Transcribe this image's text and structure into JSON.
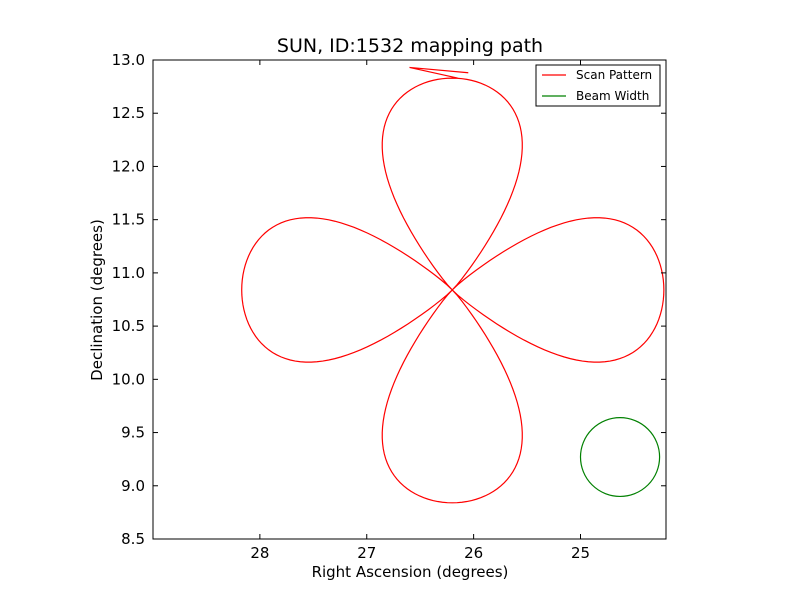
{
  "chart_data": {
    "type": "line",
    "title": "SUN, ID:1532 mapping path",
    "xlabel": "Right Ascension (degrees)",
    "ylabel": "Declination (degrees)",
    "xlim": [
      29.0,
      24.2
    ],
    "ylim": [
      8.5,
      13.0
    ],
    "x_inverted": true,
    "xticks": [
      28,
      27,
      26,
      25
    ],
    "yticks": [
      8.5,
      9.0,
      9.5,
      10.0,
      10.5,
      11.0,
      11.5,
      12.0,
      12.5,
      13.0
    ],
    "grid": false,
    "legend_position": "top-right",
    "series": [
      {
        "name": "Scan Pattern",
        "color": "#ff0000",
        "kind": "rose-4-petal",
        "center": [
          26.2,
          10.84
        ],
        "petal_lengths_deg": {
          "east": 1.98,
          "west": 1.97,
          "north": 1.99,
          "south": 2.0
        },
        "petal_half_widths_deg": {
          "east": 0.59,
          "west": 0.59,
          "north": 0.57,
          "south": 0.57
        },
        "start_marker": {
          "ra": [
            26.6,
            26.15
          ],
          "dec": [
            12.93,
            12.83
          ]
        }
      },
      {
        "name": "Beam Width",
        "color": "#008000",
        "kind": "circle",
        "center": [
          24.63,
          9.27
        ],
        "radius_dec_deg": 0.37,
        "radius_ra_deg": 0.37
      }
    ]
  }
}
